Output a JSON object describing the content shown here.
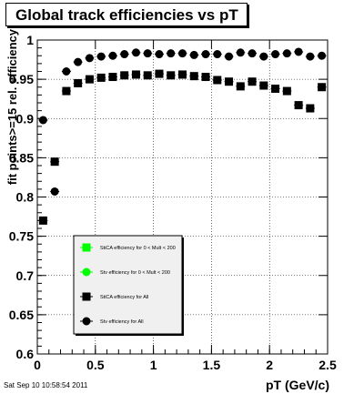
{
  "title": "Global track efficiencies vs pT",
  "timestamp": "Sat Sep 10 10:58:54 2011",
  "colors": {
    "frame": "#000000",
    "grid": "#000000",
    "green": "#00ff00",
    "black": "#000000",
    "legend_bg": "#f0f0f0"
  },
  "chart_data": {
    "type": "scatter",
    "title": "Global track efficiencies vs pT",
    "xlabel": "pT (GeV/c)",
    "ylabel": "fit points>=15 rel. efficiency",
    "xlim": [
      0,
      2.5
    ],
    "ylim": [
      0.6,
      1.0
    ],
    "grid": true,
    "x_ticks": [
      "0",
      "0.5",
      "1",
      "1.5",
      "2",
      "2.5"
    ],
    "y_ticks": [
      "0.6",
      "0.65",
      "0.7",
      "0.75",
      "0.8",
      "0.85",
      "0.9",
      "0.95",
      "1"
    ],
    "legend_position": "bottom-left",
    "series": [
      {
        "name": "StiCA efficiency  for 0 < Mult < 200",
        "marker": "square",
        "color": "#00ff00",
        "x": [],
        "y": []
      },
      {
        "name": "Stv efficiency  for 0 < Mult < 200",
        "marker": "circle",
        "color": "#00ff00",
        "x": [],
        "y": []
      },
      {
        "name": "StiCA efficiency  for All",
        "marker": "square",
        "color": "#000000",
        "x": [
          0.05,
          0.15,
          0.25,
          0.35,
          0.45,
          0.55,
          0.65,
          0.75,
          0.85,
          0.95,
          1.05,
          1.15,
          1.25,
          1.35,
          1.45,
          1.55,
          1.65,
          1.75,
          1.85,
          1.95,
          2.05,
          2.15,
          2.25,
          2.35,
          2.45
        ],
        "y": [
          0.77,
          0.845,
          0.935,
          0.945,
          0.95,
          0.952,
          0.953,
          0.955,
          0.956,
          0.955,
          0.957,
          0.955,
          0.956,
          0.954,
          0.953,
          0.949,
          0.947,
          0.941,
          0.947,
          0.942,
          0.938,
          0.935,
          0.917,
          0.913,
          0.94
        ]
      },
      {
        "name": "Stv efficiency  for All",
        "marker": "circle",
        "color": "#000000",
        "x": [
          0.05,
          0.15,
          0.25,
          0.35,
          0.45,
          0.55,
          0.65,
          0.75,
          0.85,
          0.95,
          1.05,
          1.15,
          1.25,
          1.35,
          1.45,
          1.55,
          1.65,
          1.75,
          1.85,
          1.95,
          2.05,
          2.15,
          2.25,
          2.35,
          2.45
        ],
        "y": [
          0.898,
          0.807,
          0.96,
          0.972,
          0.977,
          0.979,
          0.98,
          0.982,
          0.984,
          0.983,
          0.982,
          0.983,
          0.983,
          0.981,
          0.982,
          0.982,
          0.979,
          0.984,
          0.983,
          0.979,
          0.982,
          0.983,
          0.985,
          0.979,
          0.98
        ]
      }
    ]
  }
}
